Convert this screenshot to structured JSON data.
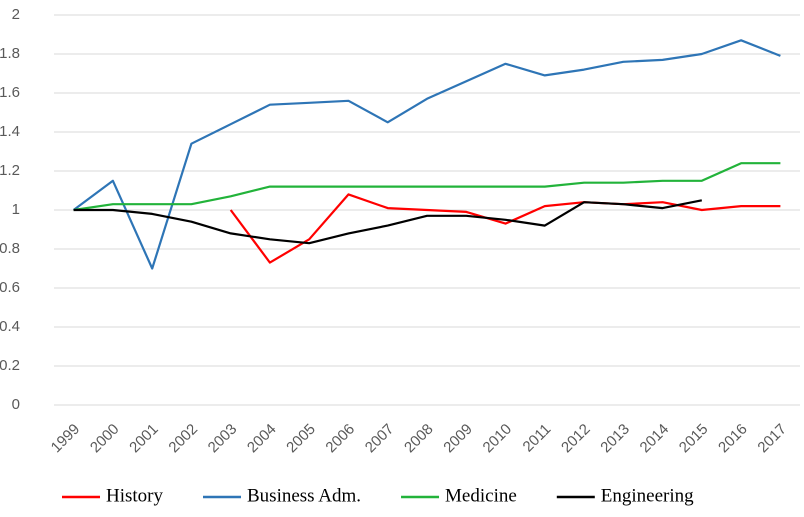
{
  "chart_data": {
    "type": "line",
    "categories": [
      "1999",
      "2000",
      "2001",
      "2002",
      "2003",
      "2004",
      "2005",
      "2006",
      "2007",
      "2008",
      "2009",
      "2010",
      "2011",
      "2012",
      "2013",
      "2014",
      "2015",
      "2016",
      "2017"
    ],
    "series": [
      {
        "name": "History",
        "color": "#ff0000",
        "values": [
          null,
          null,
          null,
          null,
          1.0,
          0.73,
          0.85,
          1.08,
          1.01,
          1.0,
          0.99,
          0.93,
          1.02,
          1.04,
          1.03,
          1.04,
          1.0,
          1.02,
          1.02
        ]
      },
      {
        "name": "Business Adm.",
        "color": "#2e75b6",
        "values": [
          1.0,
          1.15,
          0.7,
          1.34,
          1.44,
          1.54,
          1.55,
          1.56,
          1.45,
          1.57,
          1.66,
          1.75,
          1.69,
          1.72,
          1.76,
          1.77,
          1.8,
          1.87,
          1.79
        ]
      },
      {
        "name": "Medicine",
        "color": "#22b33a",
        "values": [
          1.0,
          1.03,
          1.03,
          1.03,
          1.07,
          1.12,
          1.12,
          1.12,
          1.12,
          1.12,
          1.12,
          1.12,
          1.12,
          1.14,
          1.14,
          1.15,
          1.15,
          1.24,
          1.24
        ]
      },
      {
        "name": "Engineering",
        "color": "#000000",
        "values": [
          1.0,
          1.0,
          0.98,
          0.94,
          0.88,
          0.85,
          0.83,
          0.88,
          0.92,
          0.97,
          0.97,
          0.95,
          0.92,
          1.04,
          1.03,
          1.01,
          1.05,
          null,
          null
        ]
      }
    ],
    "ylim": [
      0,
      2
    ],
    "yticks": [
      0,
      0.2,
      0.4,
      0.6,
      0.8,
      1,
      1.2,
      1.4,
      1.6,
      1.8,
      2
    ],
    "grid": true,
    "legend": "bottom"
  }
}
